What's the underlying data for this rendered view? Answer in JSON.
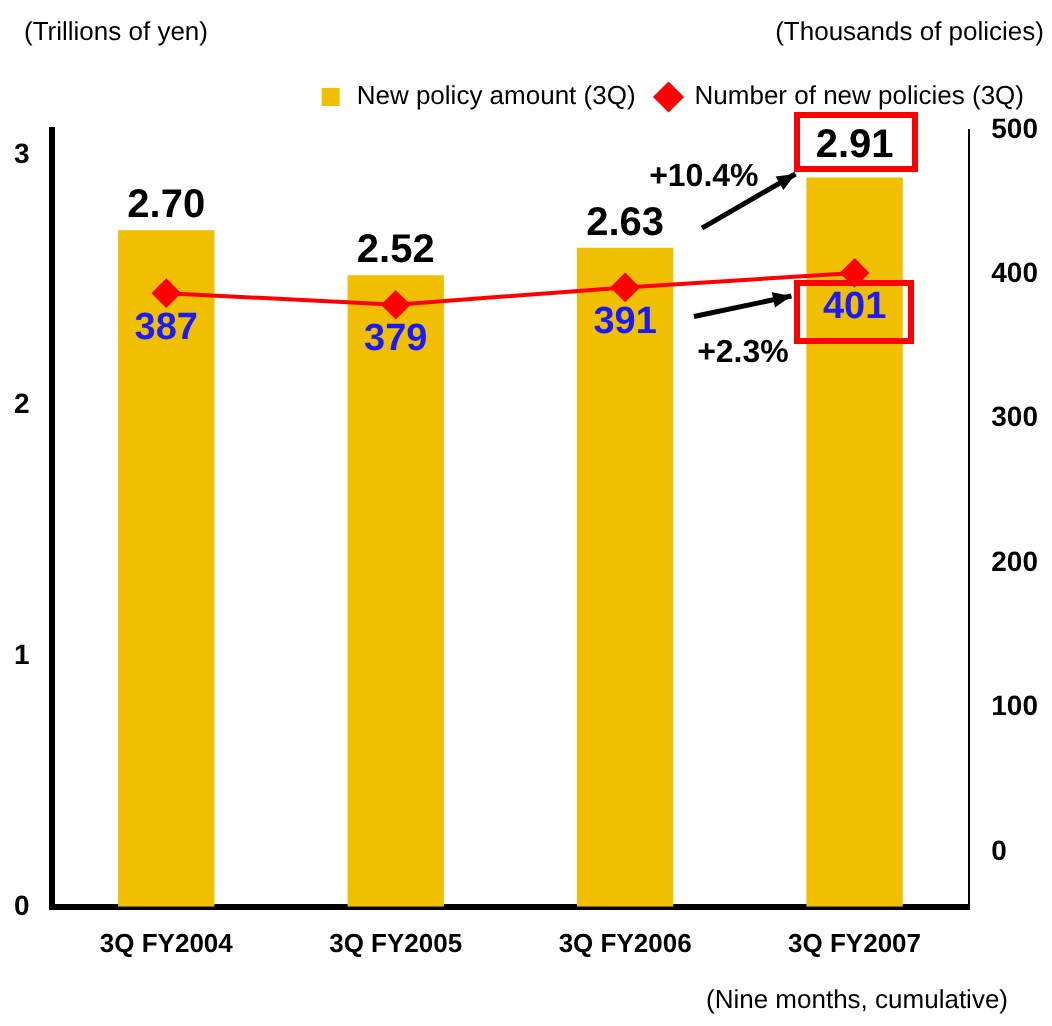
{
  "chart_data": {
    "type": "bar",
    "categories": [
      "3Q FY2004",
      "3Q FY2005",
      "3Q FY2006",
      "3Q FY2007"
    ],
    "series": [
      {
        "name": "New policy amount (3Q)",
        "color": "#f0c000",
        "values": [
          2.7,
          2.52,
          2.63,
          2.91
        ],
        "value_labels": [
          "2.70",
          "2.52",
          "2.63",
          "2.91"
        ]
      },
      {
        "name": "Number of new policies (3Q)",
        "type": "line",
        "axis": "y2",
        "color": "#ff0000",
        "marker": "diamond",
        "values": [
          387,
          379,
          391,
          401
        ],
        "value_labels": [
          "387",
          "379",
          "391",
          "401"
        ]
      }
    ],
    "ylabel": "(Trillions of yen)",
    "y2label": "(Thousands of policies)",
    "ylim": [
      0,
      3.1
    ],
    "yticks": [
      0,
      1,
      2,
      3
    ],
    "y2lim": [
      -38,
      500
    ],
    "y2ticks": [
      0,
      100,
      200,
      300,
      400,
      500
    ],
    "grid": false,
    "legend": "top",
    "annotations": [
      "+10.4%",
      "+2.3%",
      "(Nine months, cumulative)"
    ]
  }
}
